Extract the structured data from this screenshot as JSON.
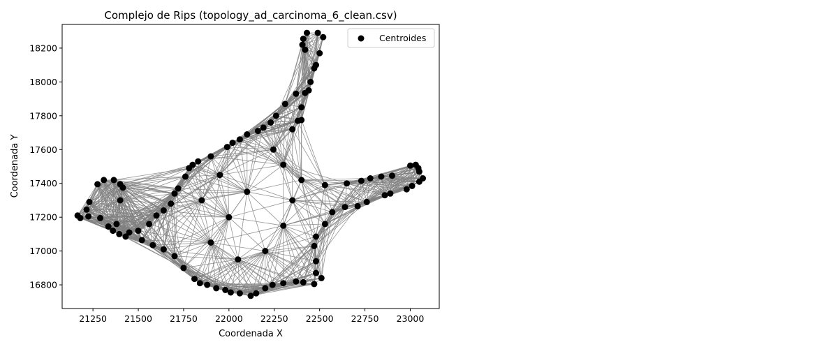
{
  "chart_data": {
    "type": "scatter",
    "title": "Complejo de Rips (topology_ad_carcinoma_6_clean.csv)",
    "xlabel": "Coordenada X",
    "ylabel": "Coordenada Y",
    "xlim": [
      21080,
      23160
    ],
    "ylim": [
      16660,
      18340
    ],
    "xticks": [
      21250,
      21500,
      21750,
      22000,
      22250,
      22500,
      22750,
      23000
    ],
    "yticks": [
      16800,
      17000,
      17200,
      17400,
      17600,
      17800,
      18000,
      18200
    ],
    "grid": false,
    "legend": {
      "position": "top-right",
      "entries": [
        "Centroides"
      ]
    },
    "colors": {
      "points": "#000000",
      "edges": "#808080",
      "fill": "#808080"
    },
    "series": [
      {
        "name": "Centroides",
        "points": [
          [
            21165,
            17210
          ],
          [
            21180,
            17195
          ],
          [
            21215,
            17245
          ],
          [
            21230,
            17290
          ],
          [
            21275,
            17395
          ],
          [
            21310,
            17420
          ],
          [
            21365,
            17420
          ],
          [
            21400,
            17395
          ],
          [
            21415,
            17375
          ],
          [
            21400,
            17300
          ],
          [
            21335,
            17145
          ],
          [
            21360,
            17120
          ],
          [
            21395,
            17100
          ],
          [
            21430,
            17085
          ],
          [
            21520,
            17065
          ],
          [
            21580,
            17035
          ],
          [
            21640,
            17010
          ],
          [
            21700,
            16970
          ],
          [
            21750,
            16900
          ],
          [
            21810,
            16835
          ],
          [
            21840,
            16810
          ],
          [
            21880,
            16800
          ],
          [
            21930,
            16780
          ],
          [
            21980,
            16770
          ],
          [
            22010,
            16755
          ],
          [
            22060,
            16750
          ],
          [
            22120,
            16735
          ],
          [
            22150,
            16750
          ],
          [
            22200,
            16780
          ],
          [
            22240,
            16800
          ],
          [
            22300,
            16810
          ],
          [
            22370,
            16820
          ],
          [
            22410,
            16815
          ],
          [
            22470,
            16805
          ],
          [
            22510,
            16840
          ],
          [
            22480,
            16870
          ],
          [
            22480,
            16940
          ],
          [
            22470,
            17030
          ],
          [
            22480,
            17085
          ],
          [
            22530,
            17160
          ],
          [
            22570,
            17230
          ],
          [
            22640,
            17260
          ],
          [
            22710,
            17265
          ],
          [
            22760,
            17290
          ],
          [
            22860,
            17330
          ],
          [
            22890,
            17340
          ],
          [
            22980,
            17365
          ],
          [
            23010,
            17385
          ],
          [
            23050,
            17410
          ],
          [
            23070,
            17430
          ],
          [
            23050,
            17470
          ],
          [
            23045,
            17490
          ],
          [
            23030,
            17510
          ],
          [
            23000,
            17505
          ],
          [
            22900,
            17445
          ],
          [
            22840,
            17440
          ],
          [
            22780,
            17430
          ],
          [
            22730,
            17415
          ],
          [
            22650,
            17400
          ],
          [
            22530,
            17390
          ],
          [
            22400,
            17420
          ],
          [
            22300,
            17510
          ],
          [
            22245,
            17600
          ],
          [
            22350,
            17720
          ],
          [
            22380,
            17770
          ],
          [
            22400,
            17775
          ],
          [
            22400,
            17850
          ],
          [
            22420,
            17935
          ],
          [
            22440,
            17950
          ],
          [
            22450,
            18000
          ],
          [
            22470,
            18080
          ],
          [
            22480,
            18100
          ],
          [
            22500,
            18170
          ],
          [
            22520,
            18265
          ],
          [
            22490,
            18290
          ],
          [
            22430,
            18290
          ],
          [
            22410,
            18255
          ],
          [
            22405,
            18220
          ],
          [
            22420,
            18190
          ],
          [
            22370,
            17930
          ],
          [
            22310,
            17870
          ],
          [
            22260,
            17800
          ],
          [
            22230,
            17760
          ],
          [
            22190,
            17730
          ],
          [
            22160,
            17710
          ],
          [
            22100,
            17690
          ],
          [
            22060,
            17660
          ],
          [
            22020,
            17640
          ],
          [
            21990,
            17615
          ],
          [
            21900,
            17560
          ],
          [
            21830,
            17530
          ],
          [
            21800,
            17510
          ],
          [
            21780,
            17490
          ],
          [
            21760,
            17440
          ],
          [
            21720,
            17370
          ],
          [
            21700,
            17340
          ],
          [
            21680,
            17280
          ],
          [
            21640,
            17240
          ],
          [
            21600,
            17210
          ],
          [
            21560,
            17160
          ],
          [
            21500,
            17120
          ],
          [
            21450,
            17110
          ],
          [
            21380,
            17160
          ],
          [
            21290,
            17195
          ],
          [
            21225,
            17205
          ],
          [
            21900,
            17050
          ],
          [
            22000,
            17200
          ],
          [
            22100,
            17350
          ],
          [
            21950,
            17450
          ],
          [
            22200,
            17000
          ],
          [
            22300,
            17150
          ],
          [
            22050,
            16950
          ],
          [
            21850,
            17300
          ],
          [
            22350,
            17300
          ]
        ]
      }
    ]
  }
}
